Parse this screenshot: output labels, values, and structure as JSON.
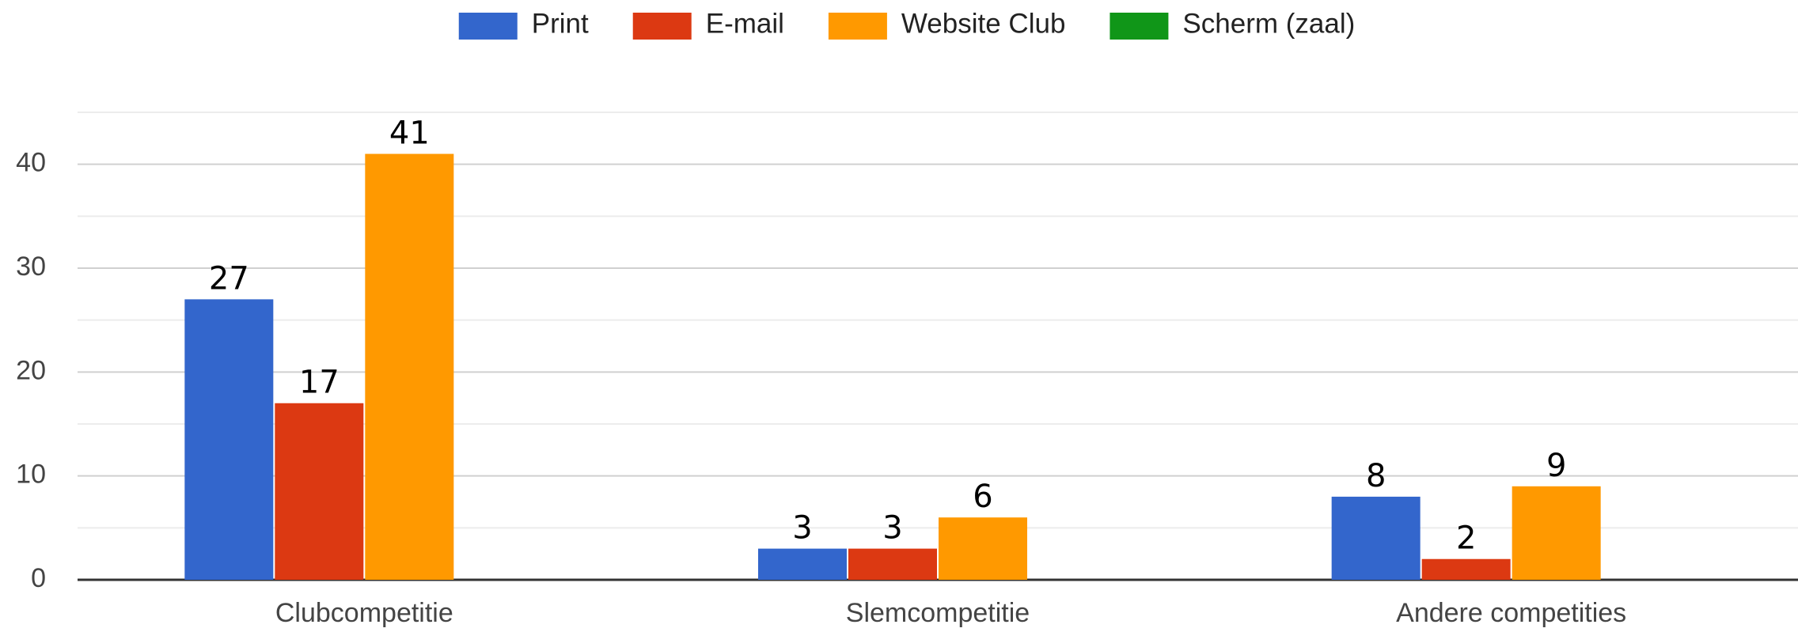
{
  "chart_data": {
    "type": "bar",
    "categories": [
      "Clubcompetitie",
      "Slemcompetitie",
      "Andere competities"
    ],
    "series": [
      {
        "name": "Print",
        "color": "#3366cc",
        "values": [
          27,
          3,
          8
        ]
      },
      {
        "name": "E-mail",
        "color": "#dc3912",
        "values": [
          17,
          3,
          2
        ]
      },
      {
        "name": "Website Club",
        "color": "#ff9900",
        "values": [
          41,
          6,
          9
        ]
      },
      {
        "name": "Scherm (zaal)",
        "color": "#109618",
        "values": [
          0,
          0,
          0
        ]
      }
    ],
    "ylim": [
      0,
      45
    ],
    "yticks": [
      0,
      10,
      20,
      30,
      40
    ],
    "grid": true,
    "legend": "top"
  }
}
